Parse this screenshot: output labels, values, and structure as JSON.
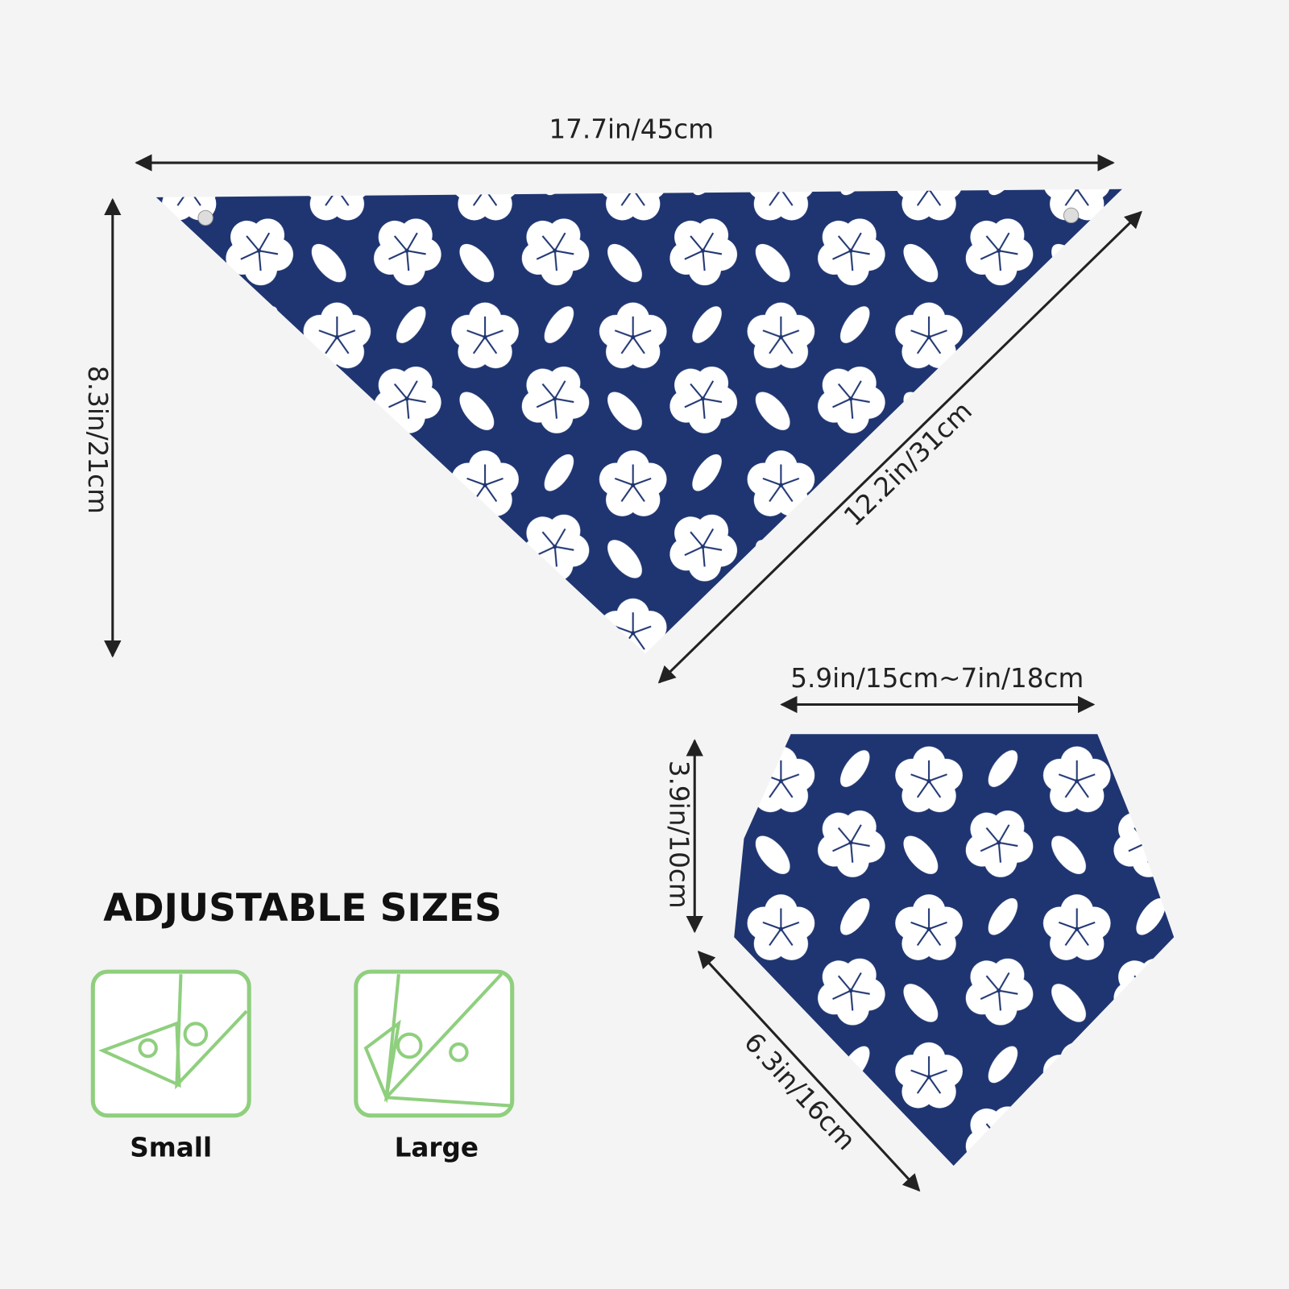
{
  "dimensions": {
    "large_width": "17.7in/45cm",
    "large_height": "8.3in/21cm",
    "large_side": "12.2in/31cm",
    "small_width": "5.9in/15cm~7in/18cm",
    "small_height": "3.9in/10cm",
    "small_side": "6.3in/16cm"
  },
  "adjustable": {
    "title": "ADJUSTABLE SIZES",
    "options": [
      "Small",
      "Large"
    ]
  }
}
